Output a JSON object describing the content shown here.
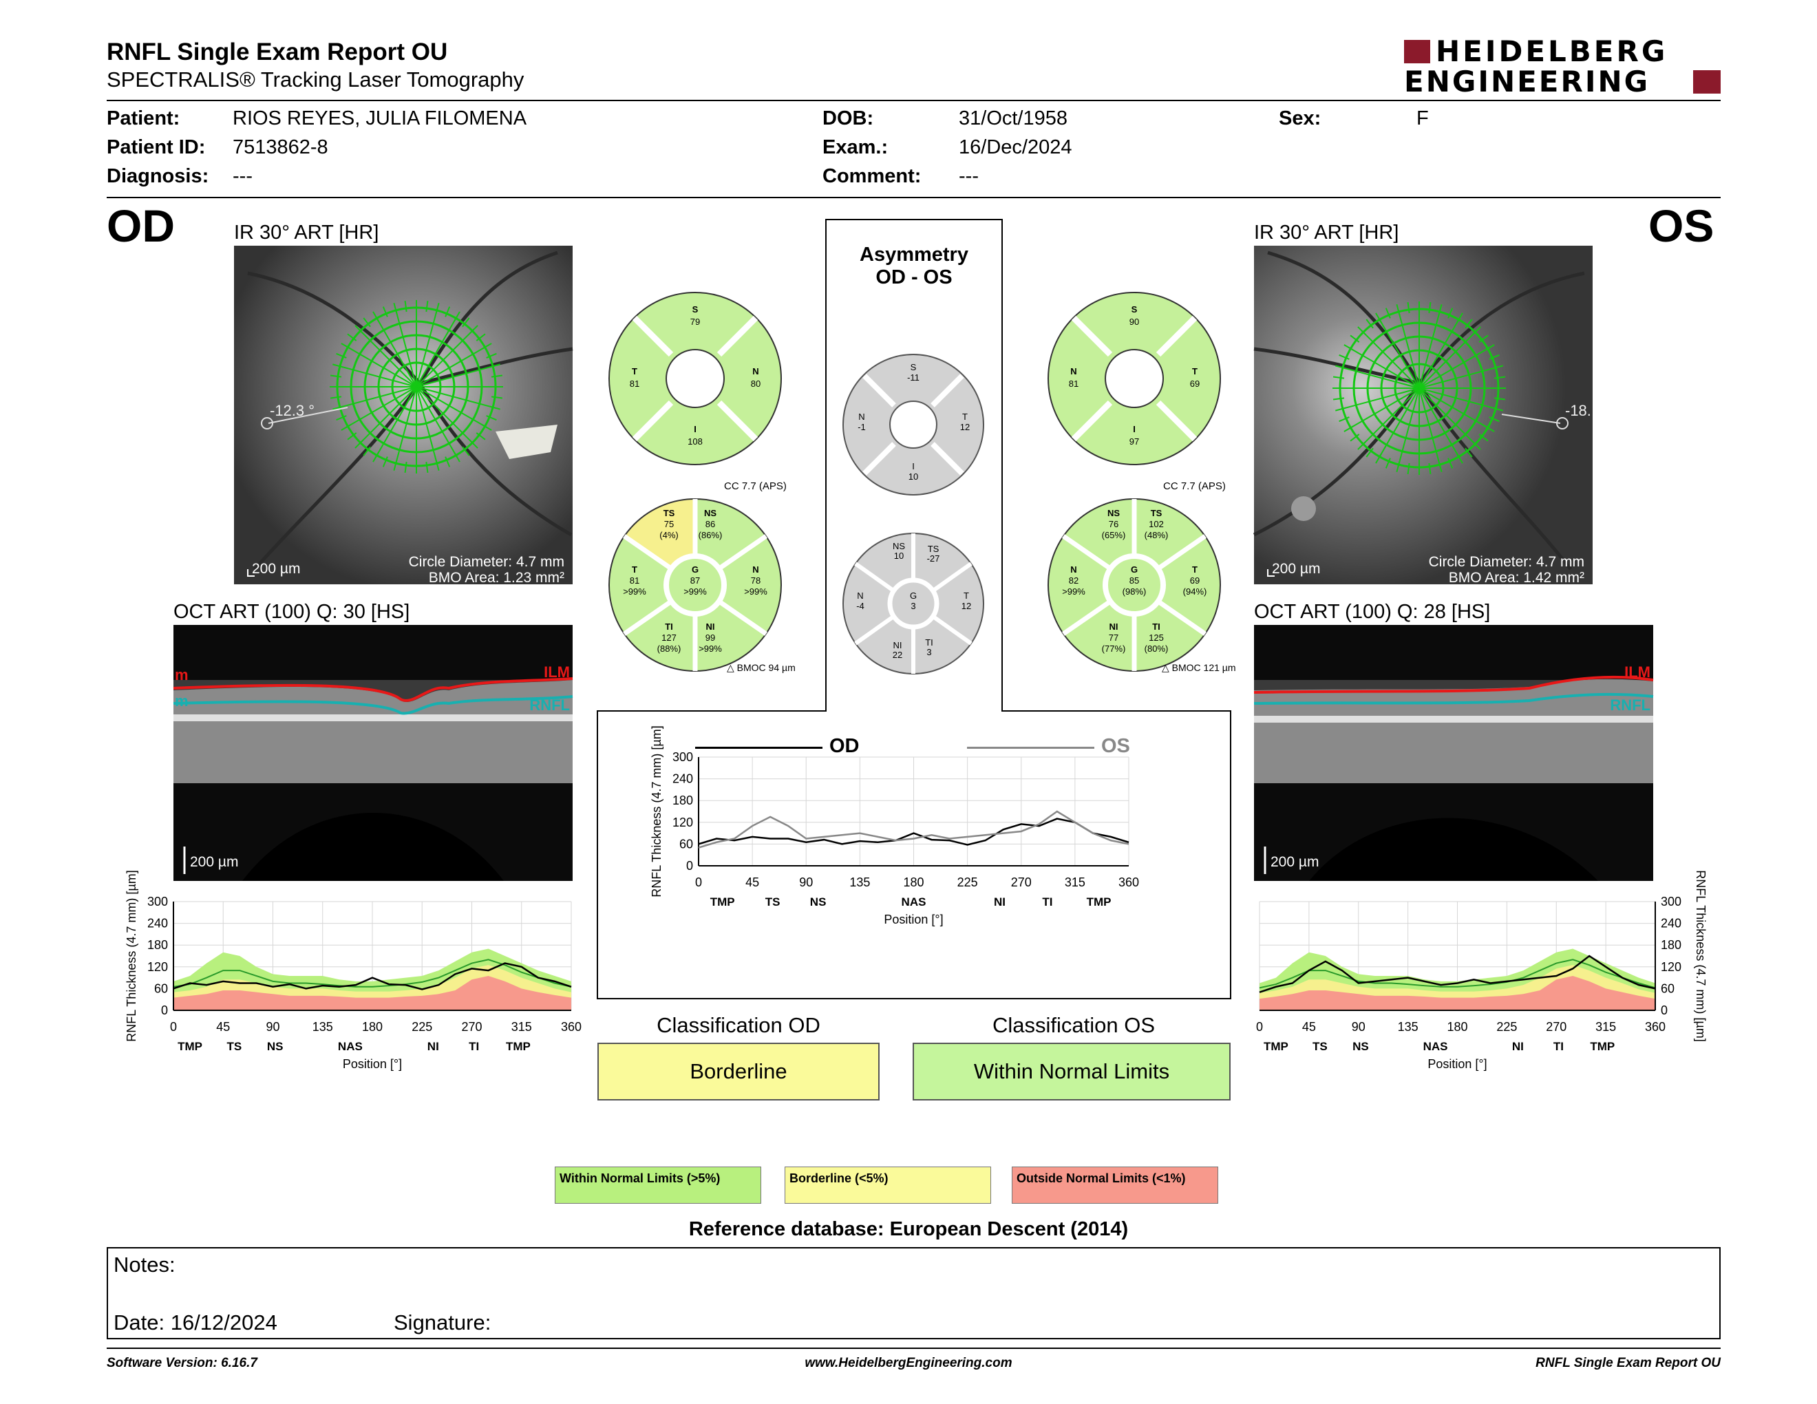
{
  "header": {
    "title": "RNFL Single Exam Report OU",
    "subtitle": "SPECTRALIS® Tracking Laser Tomography",
    "logo_line1": "HEIDELBERG",
    "logo_line2": "ENGINEERING"
  },
  "patient": {
    "patient_label": "Patient:",
    "patient_value": "RIOS REYES, JULIA FILOMENA",
    "id_label": "Patient ID:",
    "id_value": "7513862-8",
    "diagnosis_label": "Diagnosis:",
    "diagnosis_value": "---",
    "dob_label": "DOB:",
    "dob_value": "31/Oct/1958",
    "exam_label": "Exam.:",
    "exam_value": "16/Dec/2024",
    "comment_label": "Comment:",
    "comment_value": "---",
    "sex_label": "Sex:",
    "sex_value": "F"
  },
  "od": {
    "eye": "OD",
    "ir_title": "IR 30° ART [HR]",
    "angle": "-12.3 °",
    "scale": "200 µm",
    "circle_diameter": "Circle Diameter: 4.7 mm",
    "bmo_area": "BMO Area: 1.23 mm²",
    "oct_title": "OCT ART (100) Q: 30 [HS]",
    "oct_scale": "200 µm",
    "ilm": "ILM",
    "rnfl": "RNFL",
    "top_circle": {
      "S": "S",
      "S_v": "79",
      "T": "T",
      "T_v": "81",
      "N": "N",
      "N_v": "80",
      "I": "I",
      "I_v": "108"
    },
    "cc": "CC 7.7 (APS)",
    "sectors": {
      "TS": "TS",
      "TS_v": "75",
      "TS_p": "(4%)",
      "NS": "NS",
      "NS_v": "86",
      "NS_p": "(86%)",
      "T": "T",
      "T_v": "81",
      "T_p": ">99%",
      "G": "G",
      "G_v": "87",
      "G_p": ">99%",
      "N": "N",
      "N_v": "78",
      "N_p": ">99%",
      "TI": "TI",
      "TI_v": "127",
      "TI_p": "(88%)",
      "NI": "NI",
      "NI_v": "99",
      "NI_p": ">99%"
    },
    "bmoc": "BMOC 94 µm"
  },
  "os": {
    "eye": "OS",
    "ir_title": "IR 30° ART [HR]",
    "angle": "-18.",
    "scale": "200 µm",
    "circle_diameter": "Circle Diameter: 4.7 mm",
    "bmo_area": "BMO Area: 1.42 mm²",
    "oct_title": "OCT ART (100) Q: 28 [HS]",
    "oct_scale": "200 µm",
    "ilm": "ILM",
    "rnfl": "RNFL",
    "top_circle": {
      "S": "S",
      "S_v": "90",
      "T": "T",
      "T_v": "69",
      "N": "N",
      "N_v": "81",
      "I": "I",
      "I_v": "97"
    },
    "cc": "CC 7.7 (APS)",
    "sectors": {
      "NS": "NS",
      "NS_v": "76",
      "NS_p": "(65%)",
      "TS": "TS",
      "TS_v": "102",
      "TS_p": "(48%)",
      "N": "N",
      "N_v": "82",
      "N_p": ">99%",
      "G": "G",
      "G_v": "85",
      "G_p": "(98%)",
      "T": "T",
      "T_v": "69",
      "T_p": "(94%)",
      "NI": "NI",
      "NI_v": "77",
      "NI_p": "(77%)",
      "TI": "TI",
      "TI_v": "125",
      "TI_p": "(80%)"
    },
    "bmoc": "BMOC 121 µm"
  },
  "asym": {
    "title1": "Asymmetry",
    "title2": "OD - OS",
    "top": {
      "S": "S",
      "S_v": "-11",
      "N": "N",
      "N_v": "-1",
      "T": "T",
      "T_v": "12",
      "I": "I",
      "I_v": "10"
    },
    "sectors": {
      "NS": "NS",
      "NS_v": "10",
      "TS": "TS",
      "TS_v": "-27",
      "N": "N",
      "N_v": "-4",
      "G": "G",
      "G_v": "3",
      "T": "T",
      "T_v": "12",
      "NI": "NI",
      "NI_v": "22",
      "TI": "TI",
      "TI_v": "3"
    },
    "legend_od": "OD",
    "legend_os": "OS"
  },
  "chart_data": [
    {
      "type": "line",
      "name": "od-thickness",
      "xlabel": "Position [°]",
      "ylabel": "RNFL Thickness (4.7 mm) [µm]",
      "xlim": [
        0,
        360
      ],
      "ylim": [
        0,
        300
      ],
      "x_ticks": [
        "0",
        "45",
        "90",
        "135",
        "180",
        "225",
        "270",
        "315",
        "360"
      ],
      "y_ticks": [
        "300",
        "240",
        "180",
        "120",
        "60",
        "0"
      ],
      "region_labels": [
        "TMP",
        "TS",
        "NS",
        "NAS",
        "NI",
        "TI",
        "TMP"
      ],
      "region_positions": [
        15,
        55,
        92,
        160,
        235,
        272,
        312
      ],
      "x": [
        0,
        15,
        30,
        45,
        60,
        75,
        90,
        105,
        120,
        135,
        150,
        165,
        180,
        195,
        210,
        225,
        240,
        255,
        270,
        285,
        300,
        315,
        330,
        345,
        360
      ],
      "series": [
        {
          "values": [
            60,
            75,
            70,
            80,
            75,
            75,
            65,
            72,
            60,
            68,
            65,
            70,
            90,
            72,
            70,
            58,
            70,
            100,
            115,
            110,
            130,
            120,
            90,
            80,
            65
          ]
        }
      ],
      "bands": {
        "green_top": [
          80,
          95,
          130,
          160,
          150,
          120,
          100,
          95,
          95,
          95,
          85,
          80,
          80,
          85,
          90,
          95,
          110,
          135,
          160,
          170,
          150,
          130,
          110,
          95,
          80
        ],
        "yellow_top": [
          50,
          55,
          65,
          85,
          85,
          75,
          65,
          60,
          60,
          60,
          55,
          52,
          52,
          52,
          55,
          60,
          70,
          90,
          115,
          125,
          110,
          90,
          75,
          60,
          50
        ],
        "red_top": [
          35,
          40,
          45,
          55,
          55,
          50,
          45,
          40,
          40,
          40,
          38,
          35,
          35,
          35,
          38,
          40,
          45,
          55,
          85,
          95,
          80,
          60,
          50,
          42,
          35
        ],
        "mean": [
          65,
          72,
          90,
          110,
          110,
          95,
          80,
          75,
          75,
          72,
          68,
          65,
          65,
          68,
          72,
          78,
          90,
          110,
          130,
          140,
          125,
          105,
          90,
          75,
          65
        ]
      },
      "classification_colors": {
        "wnl": "#a8e070",
        "bl": "#f5ec82",
        "onl": "#f08a7e"
      }
    },
    {
      "type": "line",
      "name": "os-thickness",
      "xlabel": "Position [°]",
      "ylabel": "RNFL Thickness (4.7 mm) [µm]",
      "xlim": [
        0,
        360
      ],
      "ylim": [
        0,
        300
      ],
      "x_ticks": [
        "0",
        "45",
        "90",
        "135",
        "180",
        "225",
        "270",
        "315",
        "360"
      ],
      "y_ticks": [
        "300",
        "240",
        "180",
        "120",
        "60",
        "0"
      ],
      "region_labels": [
        "TMP",
        "TS",
        "NS",
        "NAS",
        "NI",
        "TI",
        "TMP"
      ],
      "region_positions": [
        15,
        55,
        92,
        160,
        235,
        272,
        312
      ],
      "x": [
        0,
        15,
        30,
        45,
        60,
        75,
        90,
        105,
        120,
        135,
        150,
        165,
        180,
        195,
        210,
        225,
        240,
        255,
        270,
        285,
        300,
        315,
        330,
        345,
        360
      ],
      "series": [
        {
          "values": [
            50,
            65,
            75,
            110,
            135,
            110,
            75,
            80,
            85,
            90,
            80,
            70,
            75,
            85,
            75,
            80,
            85,
            90,
            95,
            115,
            150,
            120,
            90,
            70,
            60
          ]
        }
      ],
      "bands": {
        "green_top": [
          75,
          90,
          130,
          160,
          150,
          120,
          100,
          95,
          95,
          95,
          85,
          80,
          80,
          85,
          90,
          95,
          110,
          135,
          160,
          170,
          150,
          130,
          110,
          90,
          75
        ],
        "yellow_top": [
          48,
          55,
          65,
          85,
          85,
          75,
          65,
          60,
          60,
          60,
          55,
          52,
          52,
          52,
          55,
          60,
          70,
          90,
          115,
          125,
          110,
          90,
          75,
          58,
          48
        ],
        "red_top": [
          32,
          38,
          45,
          55,
          55,
          50,
          45,
          40,
          40,
          40,
          38,
          35,
          35,
          35,
          38,
          40,
          45,
          55,
          85,
          95,
          80,
          60,
          50,
          40,
          32
        ],
        "mean": [
          62,
          72,
          90,
          110,
          110,
          95,
          80,
          75,
          75,
          72,
          68,
          65,
          65,
          68,
          72,
          78,
          90,
          110,
          130,
          140,
          125,
          105,
          90,
          75,
          62
        ]
      }
    },
    {
      "type": "line",
      "name": "asymmetry-thickness",
      "xlabel": "Position [°]",
      "ylabel": "RNFL Thickness (4.7 mm) [µm]",
      "xlim": [
        0,
        360
      ],
      "ylim": [
        0,
        300
      ],
      "x_ticks": [
        "0",
        "45",
        "90",
        "135",
        "180",
        "225",
        "270",
        "315",
        "360"
      ],
      "y_ticks": [
        "300",
        "240",
        "180",
        "120",
        "60",
        "0"
      ],
      "region_labels": [
        "TMP",
        "TS",
        "NS",
        "NAS",
        "NI",
        "TI",
        "TMP"
      ],
      "region_positions": [
        20,
        62,
        100,
        180,
        252,
        292,
        335
      ],
      "x": [
        0,
        15,
        30,
        45,
        60,
        75,
        90,
        105,
        120,
        135,
        150,
        165,
        180,
        195,
        210,
        225,
        240,
        255,
        270,
        285,
        300,
        315,
        330,
        345,
        360
      ],
      "series": [
        {
          "name": "OD",
          "values": [
            60,
            75,
            70,
            80,
            75,
            75,
            65,
            72,
            60,
            68,
            65,
            70,
            90,
            72,
            70,
            58,
            70,
            100,
            115,
            110,
            130,
            120,
            90,
            80,
            65
          ]
        },
        {
          "name": "OS",
          "values": [
            50,
            65,
            75,
            110,
            135,
            110,
            75,
            80,
            85,
            90,
            80,
            70,
            75,
            85,
            75,
            80,
            85,
            90,
            95,
            115,
            150,
            120,
            90,
            70,
            60
          ]
        }
      ]
    }
  ],
  "classification": {
    "od_title": "Classification OD",
    "od_value": "Borderline",
    "os_title": "Classification OS",
    "os_value": "Within Normal Limits"
  },
  "legend": {
    "wnl": "Within Normal Limits (>5%)",
    "bl": "Borderline (<5%)",
    "onl": "Outside Normal Limits (<1%)"
  },
  "reference": "Reference database: European Descent (2014)",
  "notes": {
    "notes_label": "Notes:",
    "date_label": "Date: 16/12/2024",
    "signature_label": "Signature:"
  },
  "footer": {
    "software": "Software Version: 6.16.7",
    "website": "www.HeidelbergEngineering.com",
    "report": "RNFL Single Exam Report OU"
  }
}
